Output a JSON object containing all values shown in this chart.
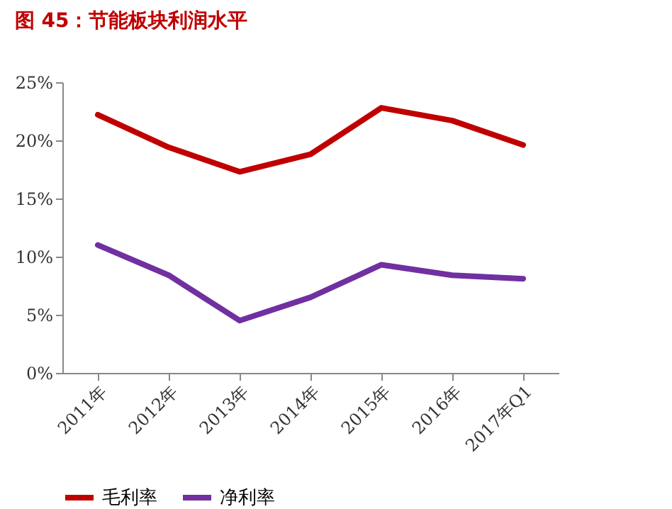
{
  "chart_data": {
    "type": "line",
    "title": "图 45：节能板块利润水平",
    "categories": [
      "2011年",
      "2012年",
      "2013年",
      "2014年",
      "2015年",
      "2016年",
      "2017年Q1"
    ],
    "series": [
      {
        "name": "毛利率",
        "color": "#c00000",
        "values": [
          22.2,
          19.4,
          17.3,
          18.8,
          22.8,
          21.7,
          19.6
        ]
      },
      {
        "name": "净利率",
        "color": "#7030a0",
        "values": [
          11.0,
          8.4,
          4.5,
          6.5,
          9.3,
          8.4,
          8.1
        ]
      }
    ],
    "ylim": [
      0,
      25
    ],
    "yticks": [
      {
        "value": 0,
        "label": "0%"
      },
      {
        "value": 5,
        "label": "5%"
      },
      {
        "value": 10,
        "label": "10%"
      },
      {
        "value": 15,
        "label": "15%"
      },
      {
        "value": 20,
        "label": "20%"
      },
      {
        "value": 25,
        "label": "25%"
      }
    ],
    "grid": false,
    "legend": "bottom",
    "marker": "none",
    "line_style": "solid"
  }
}
